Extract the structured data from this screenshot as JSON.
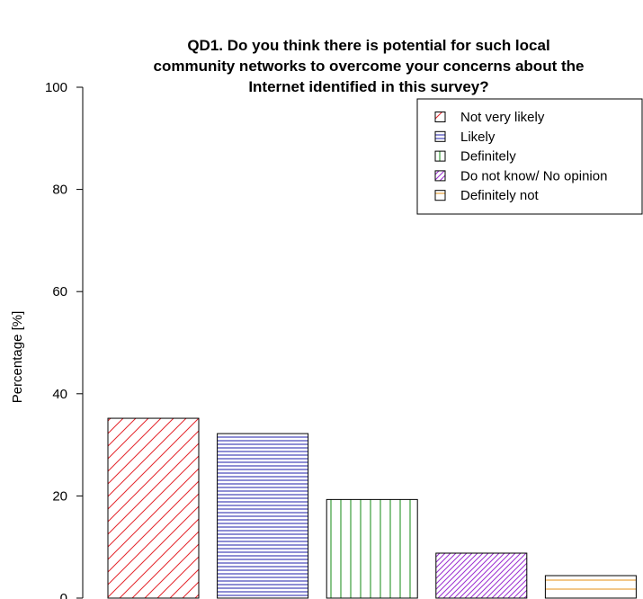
{
  "chart_data": {
    "type": "bar",
    "title_lines": [
      "QD1. Do you think there is potential for such local",
      "community networks to overcome your concerns about the",
      "Internet identified in this survey?"
    ],
    "xlabel": "",
    "ylabel": "Percentage [%]",
    "ylim": [
      0,
      100
    ],
    "yticks": [
      "0",
      "20",
      "40",
      "60",
      "80",
      "100"
    ],
    "grid": false,
    "legend_position": "top-right",
    "series": [
      {
        "name": "Not very likely",
        "value": 35.2,
        "color": "#e4262c",
        "pattern": "diag-right"
      },
      {
        "name": "Likely",
        "value": 32.2,
        "color": "#1e1ea8",
        "pattern": "horizontal"
      },
      {
        "name": "Definitely",
        "value": 19.3,
        "color": "#138a13",
        "pattern": "vertical"
      },
      {
        "name": "Do not know/ No opinion",
        "value": 8.8,
        "color": "#9b2fd1",
        "pattern": "diag-right-dense"
      },
      {
        "name": "Definitely not",
        "value": 4.4,
        "color": "#e69214",
        "pattern": "horizontal-wide"
      }
    ]
  }
}
